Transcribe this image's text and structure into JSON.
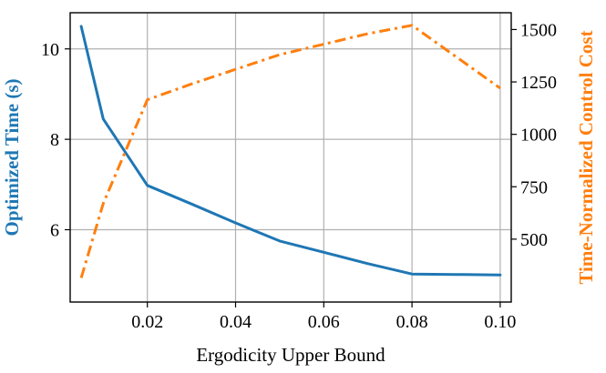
{
  "chart_data": {
    "type": "line",
    "xlabel": "Ergodicity Upper Bound",
    "ylabel_left": "Optimized Time (s)",
    "ylabel_right": "Time-Normalized Control Cost",
    "xlim": [
      0.0025,
      0.1025
    ],
    "ylim_left": [
      4.4,
      10.8
    ],
    "ylim_right": [
      200,
      1580
    ],
    "xticks": [
      0.02,
      0.04,
      0.06,
      0.08,
      0.1
    ],
    "xtick_labels": [
      "0.02",
      "0.04",
      "0.06",
      "0.08",
      "0.10"
    ],
    "yticks_left": [
      6,
      8,
      10
    ],
    "ytick_labels_left": [
      "6",
      "8",
      "10"
    ],
    "yticks_right": [
      500,
      750,
      1000,
      1250,
      1500
    ],
    "ytick_labels_right": [
      "500",
      "750",
      "1000",
      "1250",
      "1500"
    ],
    "grid": true,
    "series": [
      {
        "name": "Optimized Time (s)",
        "axis": "left",
        "color": "#1f77b4",
        "style": "solid",
        "x": [
          0.005,
          0.01,
          0.02,
          0.03,
          0.04,
          0.05,
          0.06,
          0.07,
          0.08,
          0.09,
          0.1
        ],
        "values": [
          10.5,
          8.45,
          6.98,
          6.57,
          6.15,
          5.75,
          5.5,
          5.25,
          5.02,
          5.01,
          5.0
        ]
      },
      {
        "name": "Time-Normalized Control Cost",
        "axis": "right",
        "color": "#ff7f0e",
        "style": "dashdot",
        "x": [
          0.005,
          0.01,
          0.02,
          0.03,
          0.04,
          0.05,
          0.06,
          0.07,
          0.08,
          0.09,
          0.1
        ],
        "values": [
          315,
          670,
          1165,
          1240,
          1310,
          1380,
          1430,
          1480,
          1520,
          1370,
          1220
        ]
      }
    ]
  }
}
